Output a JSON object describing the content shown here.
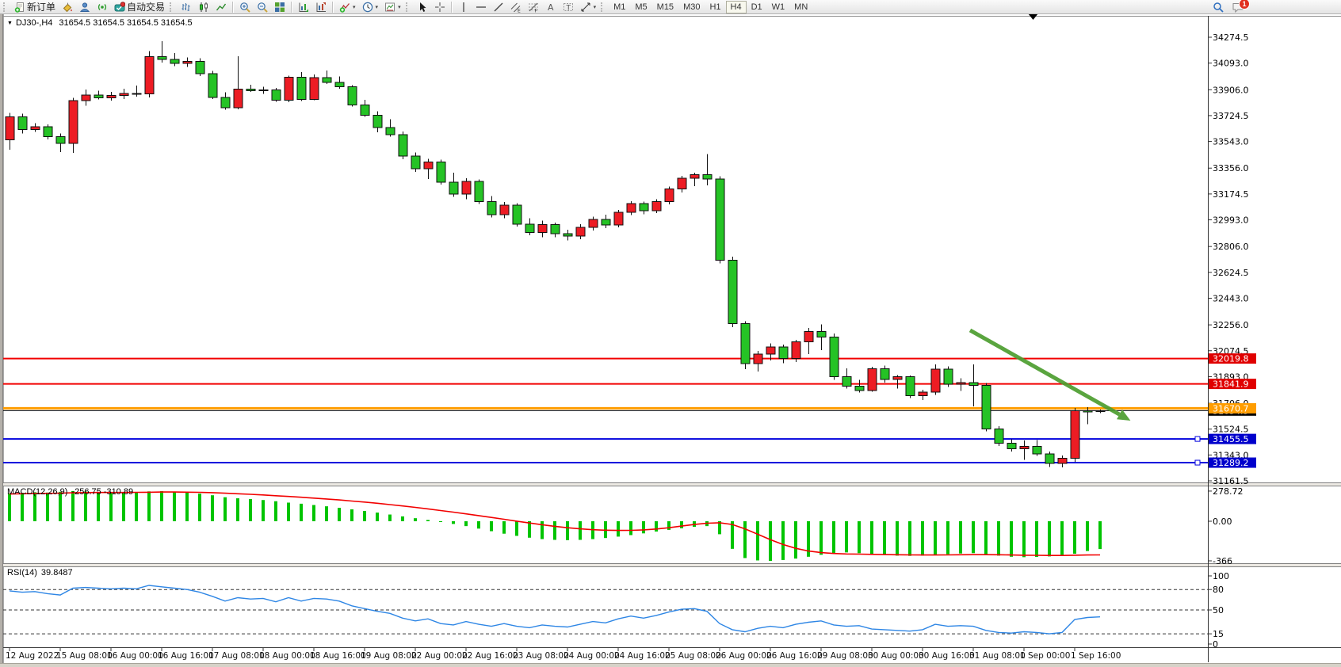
{
  "toolbar": {
    "groups": [
      {
        "handle": true,
        "items": [
          {
            "name": "new-order",
            "icon": "new-order-icon",
            "label": "新订单"
          },
          {
            "name": "styler",
            "icon": "paint-bucket-icon"
          },
          {
            "name": "profile",
            "icon": "profile-icon"
          },
          {
            "name": "signals",
            "icon": "signal-icon"
          },
          {
            "name": "autotrade",
            "icon": "autotrade-icon",
            "label": "自动交易"
          }
        ]
      },
      {
        "handle": true,
        "items": [
          {
            "name": "chart-bars",
            "icon": "chart-bars-icon"
          },
          {
            "name": "chart-candles",
            "icon": "candlestick-icon"
          },
          {
            "name": "chart-line",
            "icon": "line-chart-icon"
          }
        ]
      },
      {
        "items": [
          {
            "name": "zoom-in",
            "icon": "zoom-in-icon"
          },
          {
            "name": "zoom-out",
            "icon": "zoom-out-icon"
          },
          {
            "name": "tile-windows",
            "icon": "tile-windows-icon"
          }
        ]
      },
      {
        "items": [
          {
            "name": "auto-arrange",
            "icon": "arrange-charts-icon"
          },
          {
            "name": "chart-shift",
            "icon": "chart-shift-icon"
          }
        ]
      },
      {
        "items": [
          {
            "name": "indicators",
            "icon": "indicators-icon",
            "dropdown": true
          },
          {
            "name": "periods",
            "icon": "clock-icon",
            "dropdown": true
          },
          {
            "name": "templates",
            "icon": "template-icon",
            "dropdown": true
          }
        ]
      },
      {
        "handle": true,
        "items": [
          {
            "name": "cursor",
            "icon": "cursor-icon"
          },
          {
            "name": "crosshair",
            "icon": "crosshair-icon"
          }
        ]
      },
      {
        "items": [
          {
            "name": "vertical-line",
            "icon": "vertical-line-icon"
          },
          {
            "name": "horizontal-line",
            "icon": "horizontal-line-icon"
          },
          {
            "name": "trendline",
            "icon": "trendline-icon"
          },
          {
            "name": "equidistant-channel",
            "icon": "channel-icon"
          },
          {
            "name": "fibonacci",
            "icon": "fibonacci-icon"
          },
          {
            "name": "text",
            "icon": "text-icon"
          },
          {
            "name": "text-label",
            "icon": "label-icon"
          },
          {
            "name": "arrows",
            "icon": "arrows-icon",
            "dropdown": true
          }
        ]
      },
      {
        "handle": true,
        "timeframes": true,
        "items": [
          {
            "name": "tf-m1",
            "label": "M1"
          },
          {
            "name": "tf-m5",
            "label": "M5"
          },
          {
            "name": "tf-m15",
            "label": "M15"
          },
          {
            "name": "tf-m30",
            "label": "M30"
          },
          {
            "name": "tf-h1",
            "label": "H1"
          },
          {
            "name": "tf-h4",
            "label": "H4",
            "active": true
          },
          {
            "name": "tf-d1",
            "label": "D1"
          },
          {
            "name": "tf-w1",
            "label": "W1"
          },
          {
            "name": "tf-mn",
            "label": "MN"
          }
        ]
      }
    ],
    "right_items": [
      {
        "name": "search",
        "icon": "search-icon"
      },
      {
        "name": "chat",
        "icon": "chat-icon",
        "badge": "1"
      }
    ]
  },
  "chart": {
    "title": {
      "symbol_period": "DJ30-,H4",
      "quote": "31654.5 31654.5 31654.5 31654.5"
    }
  },
  "colors": {
    "bull": "#ed1c24",
    "bear": "#25c325",
    "wick": "#111111",
    "line_red": "#f20000",
    "line_orange": "#ff9d00",
    "line_blue": "#0000dd",
    "current_line": "#000000",
    "macd_hist": "#00c400",
    "macd_signal": "#f20000",
    "rsi": "#2e86e5",
    "arrow": "#4d9e2f"
  },
  "chart_data": {
    "type": "candlestick",
    "symbol": "DJ30-",
    "period": "H4",
    "x_label_every_n_bars": 4,
    "x_labels": [
      "12 Aug 2022",
      "15 Aug 08:00",
      "16 Aug 00:00",
      "16 Aug 16:00",
      "17 Aug 08:00",
      "18 Aug 00:00",
      "18 Aug 16:00",
      "19 Aug 08:00",
      "22 Aug 00:00",
      "22 Aug 16:00",
      "23 Aug 08:00",
      "24 Aug 00:00",
      "24 Aug 16:00",
      "25 Aug 08:00",
      "26 Aug 00:00",
      "26 Aug 16:00",
      "29 Aug 08:00",
      "30 Aug 00:00",
      "30 Aug 16:00",
      "31 Aug 08:00",
      "1 Sep 00:00",
      "1 Sep 16:00"
    ],
    "price_axis_ticks": [
      "34274.5",
      "34093.0",
      "33906.0",
      "33724.5",
      "33543.0",
      "33356.0",
      "33174.5",
      "32993.0",
      "32806.0",
      "32624.5",
      "32443.0",
      "32256.0",
      "32074.5",
      "31893.0",
      "31706.0",
      "31524.5",
      "31343.0",
      "31161.5"
    ],
    "price_axis_top_value": 34274.5,
    "price_axis_bottom_value": 31161.5,
    "candles_ohlc": [
      [
        33555,
        33745,
        33485,
        33715
      ],
      [
        33715,
        33738,
        33598,
        33628
      ],
      [
        33628,
        33670,
        33610,
        33645
      ],
      [
        33645,
        33662,
        33558,
        33578
      ],
      [
        33578,
        33598,
        33468,
        33530
      ],
      [
        33530,
        33848,
        33462,
        33830
      ],
      [
        33830,
        33908,
        33795,
        33870
      ],
      [
        33870,
        33898,
        33838,
        33850
      ],
      [
        33850,
        33892,
        33830,
        33866
      ],
      [
        33866,
        33912,
        33842,
        33880
      ],
      [
        33880,
        33935,
        33858,
        33878
      ],
      [
        33878,
        34178,
        33852,
        34138
      ],
      [
        34138,
        34248,
        34096,
        34118
      ],
      [
        34118,
        34162,
        34072,
        34090
      ],
      [
        34090,
        34132,
        34066,
        34106
      ],
      [
        34106,
        34126,
        34002,
        34018
      ],
      [
        34018,
        34038,
        33840,
        33852
      ],
      [
        33852,
        33888,
        33766,
        33780
      ],
      [
        33780,
        34142,
        33768,
        33910
      ],
      [
        33910,
        33942,
        33892,
        33900
      ],
      [
        33900,
        33926,
        33878,
        33906
      ],
      [
        33906,
        33918,
        33822,
        33832
      ],
      [
        33832,
        34006,
        33818,
        33994
      ],
      [
        33994,
        34030,
        33828,
        33838
      ],
      [
        33838,
        34012,
        33832,
        33992
      ],
      [
        33992,
        34042,
        33946,
        33958
      ],
      [
        33958,
        33998,
        33912,
        33926
      ],
      [
        33926,
        33938,
        33788,
        33800
      ],
      [
        33800,
        33836,
        33716,
        33728
      ],
      [
        33728,
        33756,
        33608,
        33640
      ],
      [
        33640,
        33700,
        33576,
        33590
      ],
      [
        33590,
        33612,
        33418,
        33440
      ],
      [
        33440,
        33465,
        33330,
        33352
      ],
      [
        33352,
        33420,
        33280,
        33400
      ],
      [
        33400,
        33415,
        33240,
        33258
      ],
      [
        33258,
        33325,
        33155,
        33175
      ],
      [
        33175,
        33285,
        33138,
        33262
      ],
      [
        33262,
        33278,
        33105,
        33122
      ],
      [
        33122,
        33160,
        33010,
        33030
      ],
      [
        33030,
        33118,
        33005,
        33096
      ],
      [
        33096,
        33110,
        32945,
        32963
      ],
      [
        32963,
        33005,
        32885,
        32905
      ],
      [
        32905,
        32988,
        32872,
        32960
      ],
      [
        32960,
        32975,
        32870,
        32896
      ],
      [
        32896,
        32925,
        32850,
        32878
      ],
      [
        32878,
        32962,
        32856,
        32940
      ],
      [
        32940,
        33015,
        32918,
        32996
      ],
      [
        32996,
        33028,
        32936,
        32956
      ],
      [
        32956,
        33062,
        32940,
        33046
      ],
      [
        33046,
        33125,
        33026,
        33106
      ],
      [
        33106,
        33122,
        33032,
        33056
      ],
      [
        33056,
        33138,
        33040,
        33120
      ],
      [
        33120,
        33228,
        33102,
        33210
      ],
      [
        33210,
        33302,
        33186,
        33286
      ],
      [
        33286,
        33325,
        33230,
        33310
      ],
      [
        33310,
        33455,
        33236,
        33280
      ],
      [
        33280,
        33298,
        32688,
        32710
      ],
      [
        32710,
        32735,
        32240,
        32266
      ],
      [
        32266,
        32282,
        31946,
        31983
      ],
      [
        31983,
        32072,
        31930,
        32050
      ],
      [
        32050,
        32125,
        32006,
        32100
      ],
      [
        32100,
        32118,
        31986,
        32020
      ],
      [
        32020,
        32152,
        31996,
        32136
      ],
      [
        32136,
        32235,
        32052,
        32210
      ],
      [
        32210,
        32260,
        32080,
        32170
      ],
      [
        32170,
        32195,
        31870,
        31893
      ],
      [
        31893,
        31952,
        31808,
        31826
      ],
      [
        31826,
        31870,
        31780,
        31795
      ],
      [
        31795,
        31962,
        31788,
        31948
      ],
      [
        31948,
        31970,
        31852,
        31872
      ],
      [
        31872,
        31905,
        31810,
        31893
      ],
      [
        31893,
        31900,
        31742,
        31758
      ],
      [
        31758,
        31800,
        31728,
        31784
      ],
      [
        31784,
        31980,
        31766,
        31946
      ],
      [
        31946,
        31965,
        31820,
        31840
      ],
      [
        31840,
        31880,
        31793,
        31850
      ],
      [
        31850,
        31978,
        31683,
        31832
      ],
      [
        31832,
        31848,
        31510,
        31526
      ],
      [
        31526,
        31545,
        31406,
        31426
      ],
      [
        31426,
        31452,
        31366,
        31386
      ],
      [
        31386,
        31445,
        31310,
        31403
      ],
      [
        31403,
        31448,
        31336,
        31350
      ],
      [
        31350,
        31368,
        31260,
        31283
      ],
      [
        31283,
        31340,
        31256,
        31320
      ],
      [
        31320,
        31672,
        31296,
        31653
      ],
      [
        31653,
        31678,
        31558,
        31650
      ],
      [
        31650,
        31662,
        31638,
        31654.5
      ]
    ],
    "horizontal_lines": [
      {
        "price": 32019.8,
        "label": "32019.8",
        "color": "#f20000",
        "width": 2,
        "label_bg": "#e00000",
        "handle": false
      },
      {
        "price": 31841.9,
        "label": "31841.9",
        "color": "#f20000",
        "width": 2,
        "label_bg": "#e00000",
        "handle": false
      },
      {
        "price": 31670.7,
        "label": "31670.7",
        "color": "#ff9d00",
        "width": 3,
        "label_bg": "#ff9d00",
        "handle": false
      },
      {
        "price": 31455.5,
        "label": "31455.5",
        "color": "#0000dd",
        "width": 2,
        "label_bg": "#0000cc",
        "handle": true
      },
      {
        "price": 31289.2,
        "label": "31289.2",
        "color": "#0000dd",
        "width": 2,
        "label_bg": "#0000cc",
        "handle": true
      }
    ],
    "current_price": {
      "price": 31654.5,
      "label": "31654.5"
    },
    "trend_arrow": {
      "from_bar": 75.75,
      "from_price": 32218,
      "to_bar": 88.4,
      "to_price": 31584
    },
    "macd": {
      "label": "MACD(12,26,9)",
      "values_text": "-256.75 -310.89",
      "main_value": -256.75,
      "signal_value": -310.89,
      "axis_ticks": [
        [
          "278.72",
          278.72
        ],
        [
          "0.00",
          0
        ],
        [
          "-366",
          -366
        ]
      ],
      "histogram": [
        258,
        263,
        268,
        265,
        272,
        279,
        274,
        268,
        262,
        266,
        270,
        276,
        278,
        272,
        265,
        255,
        240,
        222,
        212,
        205,
        196,
        185,
        172,
        162,
        150,
        138,
        124,
        110,
        95,
        80,
        62,
        45,
        28,
        12,
        -5,
        -25,
        -45,
        -68,
        -92,
        -115,
        -135,
        -152,
        -165,
        -172,
        -175,
        -172,
        -165,
        -155,
        -142,
        -128,
        -112,
        -95,
        -80,
        -65,
        -52,
        -45,
        -120,
        -255,
        -340,
        -362,
        -366,
        -358,
        -345,
        -328,
        -310,
        -295,
        -288,
        -295,
        -305,
        -312,
        -318,
        -320,
        -318,
        -312,
        -305,
        -298,
        -295,
        -305,
        -318,
        -328,
        -332,
        -330,
        -325,
        -318,
        -300,
        -275,
        -257
      ],
      "signal": [
        252,
        254,
        257,
        258,
        260,
        263,
        265,
        266,
        266,
        266,
        267,
        268,
        270,
        270,
        269,
        267,
        264,
        259,
        254,
        249,
        243,
        236,
        229,
        222,
        214,
        206,
        197,
        187,
        177,
        166,
        154,
        141,
        128,
        114,
        99,
        84,
        68,
        52,
        35,
        18,
        1,
        -16,
        -32,
        -47,
        -60,
        -70,
        -78,
        -83,
        -85,
        -84,
        -80,
        -72,
        -60,
        -45,
        -30,
        -18,
        -14,
        -30,
        -70,
        -120,
        -170,
        -215,
        -250,
        -275,
        -290,
        -298,
        -302,
        -304,
        -306,
        -308,
        -310,
        -311,
        -312,
        -312,
        -311,
        -310,
        -309,
        -309,
        -310,
        -312,
        -314,
        -315,
        -316,
        -316,
        -314,
        -312,
        -311
      ]
    },
    "rsi": {
      "label": "RSI(14)",
      "value_text": "39.8487",
      "value": 39.8487,
      "levels": [
        80,
        50,
        15
      ],
      "axis_ticks": [
        [
          "100",
          100
        ],
        [
          "80",
          80
        ],
        [
          "50",
          50
        ],
        [
          "15",
          15
        ],
        [
          "0",
          0
        ]
      ],
      "series": [
        78,
        76,
        77,
        74,
        72,
        82,
        83,
        82,
        81,
        82,
        81,
        86,
        84,
        82,
        80,
        76,
        70,
        63,
        68,
        66,
        67,
        62,
        68,
        63,
        67,
        66,
        63,
        56,
        52,
        48,
        45,
        38,
        34,
        37,
        30,
        28,
        33,
        29,
        26,
        30,
        26,
        24,
        28,
        26,
        25,
        29,
        33,
        31,
        37,
        41,
        38,
        42,
        47,
        51,
        52,
        48,
        30,
        21,
        18,
        23,
        26,
        24,
        29,
        32,
        34,
        28,
        26,
        27,
        22,
        21,
        20,
        19,
        21,
        29,
        26,
        27,
        26,
        20,
        17,
        16,
        18,
        17,
        15,
        17,
        36,
        39,
        39.85
      ]
    }
  }
}
